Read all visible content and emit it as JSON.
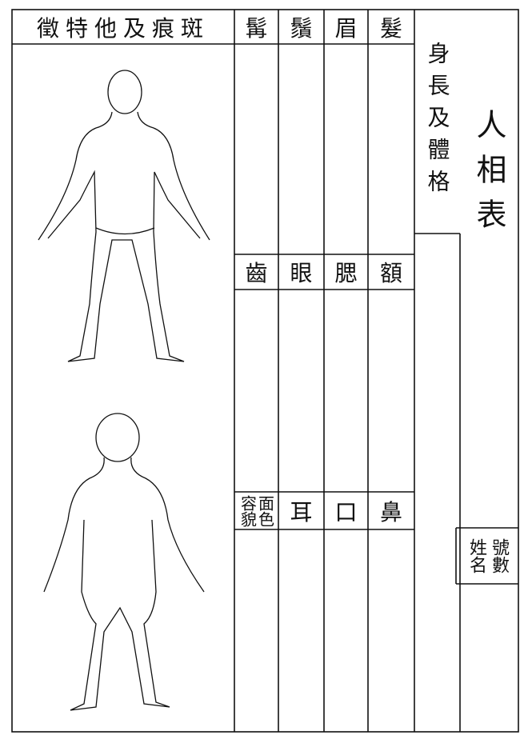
{
  "title": "人相表",
  "build_label": "身長及體格",
  "marks_label": "徵特他及痕斑",
  "row1": [
    "髯",
    "鬚",
    "眉",
    "髮"
  ],
  "row2": [
    "齒",
    "眼",
    "腮",
    "額"
  ],
  "row3": {
    "complexion": "面色",
    "appearance": "容貌",
    "cells": [
      "耳",
      "口",
      "鼻"
    ]
  },
  "id_box": {
    "number": "號數",
    "name": "姓名"
  }
}
